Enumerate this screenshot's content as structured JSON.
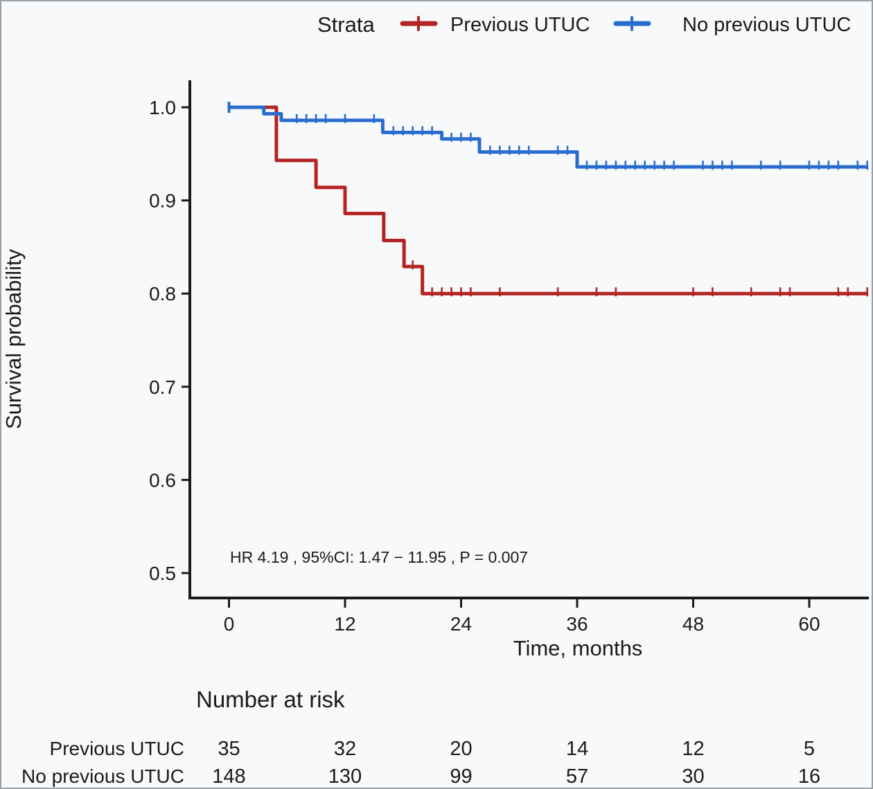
{
  "colors": {
    "background": "#f7f9fb",
    "axis": "#1a1a1a",
    "text": "#1a1a1a",
    "previous_utuc": "#b42423",
    "previous_utuc_label": "#9c3b43",
    "no_previous_utuc": "#2a6cce"
  },
  "legend": {
    "title": "Strata",
    "items": [
      {
        "label": "Previous UTUC",
        "color": "#b42423"
      },
      {
        "label": "No previous UTUC",
        "color": "#2a6cce"
      }
    ]
  },
  "chart_data": {
    "type": "line",
    "subtype": "kaplan-meier-step",
    "title": "",
    "xlabel": "Time, months",
    "ylabel": "Survival probability",
    "xlim": [
      -4,
      66.2
    ],
    "ylim": [
      0.475,
      1.027
    ],
    "xticks": [
      0,
      12,
      24,
      36,
      48,
      60
    ],
    "yticks": [
      "1.0",
      "0.9",
      "0.8",
      "0.7",
      "0.6",
      "0.5"
    ],
    "ytick_values": [
      1.0,
      0.9,
      0.8,
      0.7,
      0.6,
      0.5
    ],
    "grid": false,
    "legend_position": "top",
    "annotation": "HR  4.19 , 95%CI:  1.47 − 11.95 ,  P = 0.007",
    "series": [
      {
        "name": "Previous UTUC",
        "color": "#b42423",
        "steps": [
          [
            0,
            1.0
          ],
          [
            4.9,
            0.943
          ],
          [
            9,
            0.914
          ],
          [
            12,
            0.886
          ],
          [
            16,
            0.857
          ],
          [
            18.1,
            0.829
          ],
          [
            20,
            0.8
          ]
        ],
        "end_time": 66.1,
        "censor_marks": [
          [
            19,
            0.829
          ],
          [
            21,
            0.8
          ],
          [
            22,
            0.8
          ],
          [
            23,
            0.8
          ],
          [
            24,
            0.8
          ],
          [
            25,
            0.8
          ],
          [
            28,
            0.8
          ],
          [
            34,
            0.8
          ],
          [
            38,
            0.8
          ],
          [
            40,
            0.8
          ],
          [
            48,
            0.8
          ],
          [
            50,
            0.8
          ],
          [
            54,
            0.8
          ],
          [
            57,
            0.8
          ],
          [
            58,
            0.8
          ],
          [
            63,
            0.8
          ],
          [
            64,
            0.8
          ],
          [
            66,
            0.8
          ]
        ]
      },
      {
        "name": "No previous UTUC",
        "color": "#2a6cce",
        "steps": [
          [
            0,
            1.0
          ],
          [
            3.6,
            0.993
          ],
          [
            5.4,
            0.986
          ],
          [
            15.9,
            0.973
          ],
          [
            22,
            0.966
          ],
          [
            25.9,
            0.952
          ],
          [
            36,
            0.936
          ]
        ],
        "end_time": 66.1,
        "censor_marks": [
          [
            7,
            0.986
          ],
          [
            8,
            0.986
          ],
          [
            9,
            0.986
          ],
          [
            10,
            0.986
          ],
          [
            12,
            0.986
          ],
          [
            15,
            0.986
          ],
          [
            17,
            0.973
          ],
          [
            18,
            0.973
          ],
          [
            19,
            0.973
          ],
          [
            20,
            0.973
          ],
          [
            21,
            0.973
          ],
          [
            23,
            0.966
          ],
          [
            24,
            0.966
          ],
          [
            25,
            0.966
          ],
          [
            27,
            0.952
          ],
          [
            28,
            0.952
          ],
          [
            29,
            0.952
          ],
          [
            30,
            0.952
          ],
          [
            31,
            0.952
          ],
          [
            34,
            0.952
          ],
          [
            35,
            0.952
          ],
          [
            37,
            0.936
          ],
          [
            38,
            0.936
          ],
          [
            39,
            0.936
          ],
          [
            40,
            0.936
          ],
          [
            41,
            0.936
          ],
          [
            42,
            0.936
          ],
          [
            43,
            0.936
          ],
          [
            44,
            0.936
          ],
          [
            45,
            0.936
          ],
          [
            46,
            0.936
          ],
          [
            49,
            0.936
          ],
          [
            50,
            0.936
          ],
          [
            51,
            0.936
          ],
          [
            52,
            0.936
          ],
          [
            55,
            0.936
          ],
          [
            57,
            0.936
          ],
          [
            60,
            0.936
          ],
          [
            61,
            0.936
          ],
          [
            62,
            0.936
          ],
          [
            63,
            0.936
          ],
          [
            65,
            0.936
          ],
          [
            66,
            0.936
          ]
        ]
      }
    ]
  },
  "risk_table": {
    "title": "Number at risk",
    "times": [
      0,
      12,
      24,
      36,
      48,
      60
    ],
    "rows": [
      {
        "label": "Previous UTUC",
        "color": "#9c3b43",
        "values": [
          "35",
          "32",
          "20",
          "14",
          "12",
          "5"
        ]
      },
      {
        "label": "No previous UTUC",
        "color": "#2a6cce",
        "values": [
          "148",
          "130",
          "99",
          "57",
          "30",
          "16"
        ]
      }
    ]
  }
}
